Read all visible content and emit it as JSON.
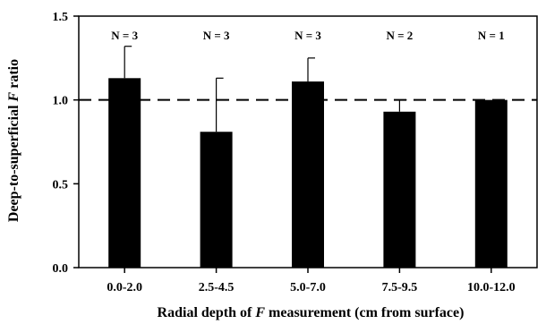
{
  "chart_data": {
    "type": "bar",
    "categories": [
      "0.0-2.0",
      "2.5-4.5",
      "5.0-7.0",
      "7.5-9.5",
      "10.0-12.0"
    ],
    "values": [
      1.13,
      0.81,
      1.11,
      0.93,
      1.0
    ],
    "error_upper": [
      0.19,
      0.32,
      0.14,
      0.07,
      0.0
    ],
    "sample_sizes": [
      "N = 3",
      "N = 3",
      "N = 3",
      "N = 2",
      "N = 1"
    ],
    "reference_line": 1.0,
    "title": "",
    "xlabel_parts": [
      "Radial depth of ",
      "F",
      " measurement (cm from surface)"
    ],
    "ylabel_parts": [
      "Deep-to-superficial ",
      "F",
      " ratio"
    ],
    "yticks": [
      "0.0",
      "0.5",
      "1.0",
      "1.5"
    ],
    "ytick_values": [
      0,
      0.5,
      1.0,
      1.5
    ],
    "ylim": [
      0,
      1.5
    ],
    "bar_color": "#000000",
    "grid": false
  }
}
